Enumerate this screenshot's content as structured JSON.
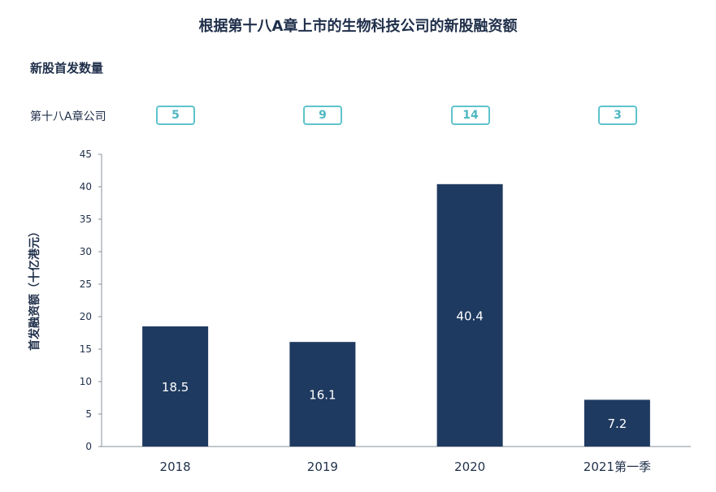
{
  "title": "根据第十八A章上市的生物科技公司的新股融资额",
  "section_title": "新股首发数量",
  "count_row_label": "第十八A章公司",
  "counts": [
    "5",
    "9",
    "14",
    "3"
  ],
  "colors": {
    "bar": "#1f3a60",
    "count_border": "#5ec3cc",
    "text": "#1f2f4a"
  },
  "chart_data": {
    "type": "bar",
    "title": "根据第十八A章上市的生物科技公司的新股融资额",
    "ylabel": "首发融资额（十亿港元）",
    "xlabel": "",
    "categories": [
      "2018",
      "2019",
      "2020",
      "2021第一季"
    ],
    "values": [
      18.5,
      16.1,
      40.4,
      7.2
    ],
    "value_labels": [
      "18.5",
      "16.1",
      "40.4",
      "7.2"
    ],
    "ylim": [
      0,
      45
    ],
    "yticks": [
      "0",
      "5",
      "10",
      "15",
      "20",
      "25",
      "30",
      "35",
      "40",
      "45"
    ],
    "grid": false,
    "legend": "none"
  }
}
